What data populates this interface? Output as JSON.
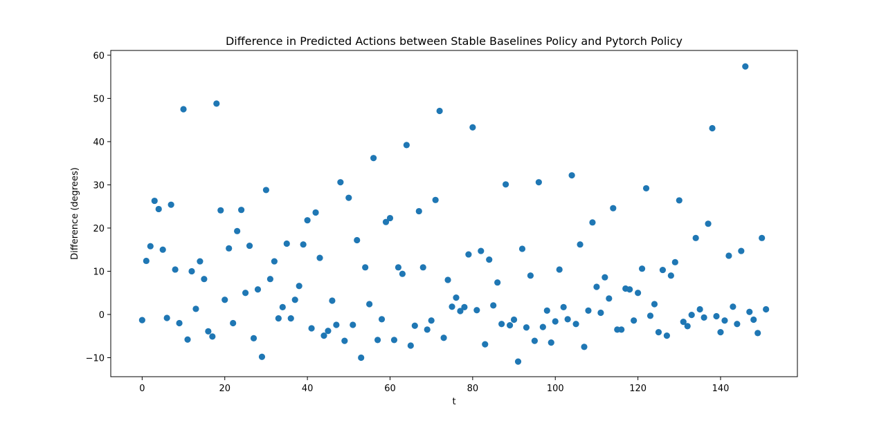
{
  "chart_data": {
    "type": "scatter",
    "title": "Difference in Predicted Actions between Stable Baselines Policy and Pytorch Policy",
    "xlabel": "t",
    "ylabel": "Difference (degrees)",
    "xlim": [
      -7.6,
      158.6
    ],
    "ylim": [
      -14.4,
      61.1
    ],
    "xticks": [
      0,
      20,
      40,
      60,
      80,
      100,
      120,
      140
    ],
    "yticks": [
      -10,
      0,
      10,
      20,
      30,
      40,
      50,
      60
    ],
    "x_tick_labels": [
      "0",
      "20",
      "40",
      "60",
      "80",
      "100",
      "120",
      "140"
    ],
    "y_tick_labels": [
      "−10",
      "0",
      "10",
      "20",
      "30",
      "40",
      "50",
      "60"
    ],
    "grid": false,
    "marker_color": "#1f77b4",
    "series": [
      {
        "x": [
          0,
          1,
          2,
          3,
          4,
          5,
          6,
          7,
          8,
          9,
          10,
          11,
          12,
          13,
          14,
          15,
          16,
          17,
          18,
          19,
          20,
          21,
          22,
          23,
          24,
          25,
          26,
          27,
          28,
          29,
          30,
          31,
          32,
          33,
          34,
          35,
          36,
          37,
          38,
          39,
          40,
          41,
          42,
          43,
          44,
          45,
          46,
          47,
          48,
          49,
          50,
          51,
          52,
          53,
          54,
          55,
          56,
          57,
          58,
          59,
          60,
          61,
          62,
          63,
          64,
          65,
          66,
          67,
          68,
          69,
          70,
          71,
          72,
          73,
          74,
          75,
          76,
          77,
          78,
          79,
          80,
          81,
          82,
          83,
          84,
          85,
          86,
          87,
          88,
          89,
          90,
          91,
          92,
          93,
          94,
          95,
          96,
          97,
          98,
          99,
          100,
          101,
          102,
          103,
          104,
          105,
          106,
          107,
          108,
          109,
          110,
          111,
          112,
          113,
          114,
          115,
          116,
          117,
          118,
          119,
          120,
          121,
          122,
          123,
          124,
          125,
          126,
          127,
          128,
          129,
          130,
          131,
          132,
          133,
          134,
          135,
          136,
          137,
          138,
          139,
          140,
          141,
          142,
          143,
          144,
          145,
          146,
          147,
          148,
          149,
          150,
          151
        ],
        "y": [
          -1.3,
          12.4,
          15.8,
          26.3,
          24.4,
          15.0,
          -0.8,
          25.4,
          10.4,
          -2.0,
          47.5,
          -5.8,
          10.0,
          1.3,
          12.3,
          8.2,
          -3.9,
          -5.1,
          48.8,
          24.1,
          3.4,
          15.3,
          -2.0,
          19.3,
          24.2,
          5.0,
          15.9,
          -5.5,
          5.8,
          -9.8,
          28.8,
          8.2,
          12.3,
          -0.9,
          1.7,
          16.4,
          -0.9,
          3.4,
          6.6,
          16.2,
          21.8,
          -3.2,
          23.6,
          13.1,
          -4.9,
          -3.8,
          3.2,
          -2.4,
          30.6,
          -6.1,
          27.0,
          -2.4,
          17.2,
          -10.0,
          10.9,
          2.4,
          36.2,
          -5.9,
          -1.1,
          21.4,
          22.3,
          -5.9,
          10.9,
          9.4,
          39.2,
          -7.2,
          -2.6,
          23.9,
          10.9,
          -3.5,
          -1.4,
          26.5,
          47.1,
          -5.4,
          8.0,
          1.8,
          3.9,
          0.8,
          1.7,
          13.9,
          43.3,
          1.0,
          14.7,
          -6.9,
          12.7,
          2.1,
          7.4,
          -2.2,
          30.1,
          -2.5,
          -1.2,
          -10.9,
          15.2,
          -3.0,
          9.0,
          -6.1,
          30.6,
          -2.9,
          0.9,
          -6.5,
          -1.6,
          10.4,
          1.7,
          -1.1,
          32.2,
          -2.2,
          16.2,
          -7.5,
          0.9,
          21.3,
          6.4,
          0.4,
          8.6,
          3.7,
          24.6,
          -3.5,
          -3.5,
          6.0,
          5.8,
          -1.4,
          5.0,
          10.6,
          29.2,
          -0.3,
          2.4,
          -4.1,
          10.3,
          -4.9,
          9.0,
          12.1,
          26.4,
          -1.7,
          -2.7,
          -0.1,
          17.7,
          1.2,
          -0.7,
          21.0,
          43.1,
          -0.4,
          -4.1,
          -1.4,
          13.6,
          1.8,
          -2.2,
          14.7,
          57.4,
          0.6,
          -1.2,
          -4.3,
          17.7,
          1.2
        ]
      }
    ]
  }
}
